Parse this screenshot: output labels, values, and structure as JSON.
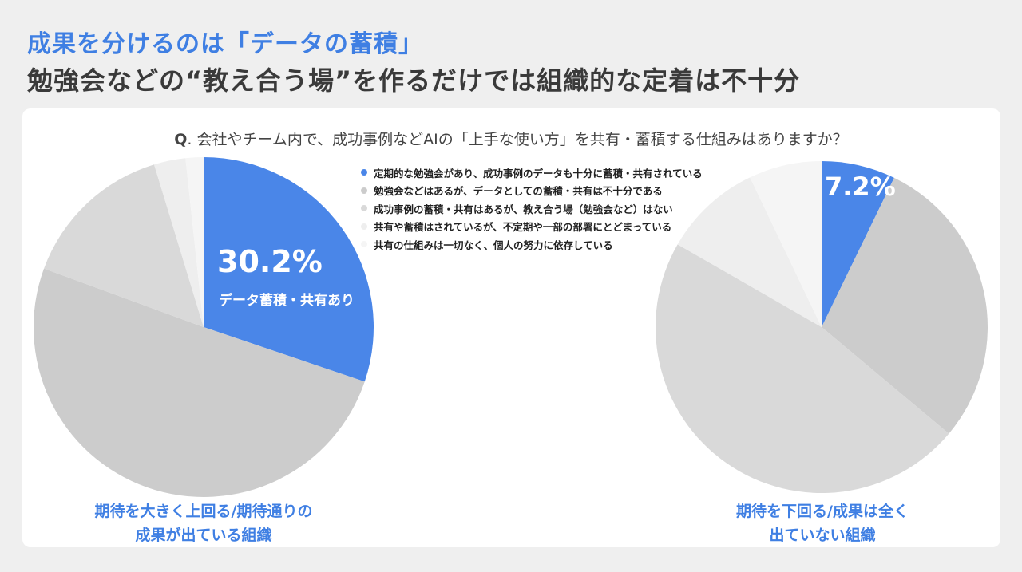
{
  "title_line1": "成果を分けるのは「データの蓄積」",
  "title_line2": "勉強会などの“教え合う場”を作るだけでは組織的な定着は不十分",
  "question_prefix": "Q",
  "question": ". 会社やチーム内で、成功事例などAIの「上手な使い方」を共有・蓄積する仕組みはありますか？",
  "chart_data": [
    {
      "type": "pie",
      "title": "期待を大きく上回る/期待通りの成果が出ている組織",
      "caption_lines": [
        "期待を大きく上回る/期待通りの",
        "成果が出ている組織"
      ],
      "categories": [
        "定期的な勉強会があり、成功事例のデータも十分に蓄積・共有されている",
        "勉強会などはあるが、データとしての蓄積・共有は不十分である",
        "成功事例の蓄積・共有はあるが、教え合う場（勉強会など）はない",
        "共有や蓄積はされているが、不定期や一部の部署にとどまっている",
        "共有の仕組みは一切なく、個人の努力に依存している"
      ],
      "values": [
        30.2,
        50.4,
        14.7,
        3.0,
        1.7
      ],
      "highlight_label": "30.2%",
      "highlight_sublabel": "データ蓄積・共有あり"
    },
    {
      "type": "pie",
      "title": "期待を下回る/成果は全く出ていない組織",
      "caption_lines": [
        "期待を下回る/成果は全く",
        "出ていない組織"
      ],
      "categories": [
        "定期的な勉強会があり、成功事例のデータも十分に蓄積・共有されている",
        "勉強会などはあるが、データとしての蓄積・共有は不十分である",
        "成功事例の蓄積・共有はあるが、教え合う場（勉強会など）はない",
        "共有や蓄積はされているが、不定期や一部の部署にとどまっている",
        "共有の仕組みは一切なく、個人の努力に依存している"
      ],
      "values": [
        7.2,
        28.9,
        47.2,
        9.6,
        7.1
      ],
      "highlight_label": "7.2%"
    }
  ],
  "legend": [
    {
      "label": "定期的な勉強会があり、成功事例のデータも十分に蓄積・共有されている",
      "color": "#4a86e8"
    },
    {
      "label": "勉強会などはあるが、データとしての蓄積・共有は不十分である",
      "color": "#cccccc"
    },
    {
      "label": "成功事例の蓄積・共有はあるが、教え合う場（勉強会など）はない",
      "color": "#d9d9d9"
    },
    {
      "label": "共有や蓄積はされているが、不定期や一部の部署にとどまっている",
      "color": "#eeeeee"
    },
    {
      "label": "共有の仕組みは一切なく、個人の努力に依存している",
      "color": "#f5f5f5"
    }
  ]
}
